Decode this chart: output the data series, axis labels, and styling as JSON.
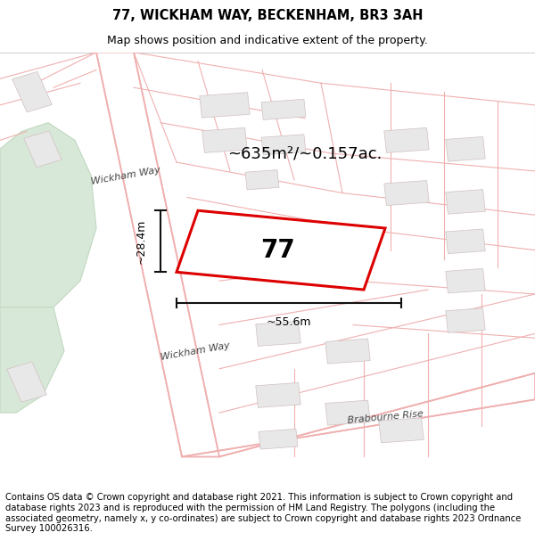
{
  "title": "77, WICKHAM WAY, BECKENHAM, BR3 3AH",
  "subtitle": "Map shows position and indicative extent of the property.",
  "footer": "Contains OS data © Crown copyright and database right 2021. This information is subject to Crown copyright and database rights 2023 and is reproduced with the permission of HM Land Registry. The polygons (including the associated geometry, namely x, y co-ordinates) are subject to Crown copyright and database rights 2023 Ordnance Survey 100026316.",
  "area_label": "~635m²/~0.157ac.",
  "width_label": "~55.6m",
  "height_label": "~28.4m",
  "property_number": "77",
  "bg_color": "#ffffff",
  "map_bg": "#ffffff",
  "road_line_color": "#f0b0b0",
  "building_color": "#e8e8e8",
  "building_edge": "#d0c0c0",
  "green_color": "#d8e8d8",
  "green_edge": "#c0d8c0",
  "property_outline_color": "#dd0000",
  "property_fill": "#ffffff",
  "dim_color": "#111111",
  "label_color": "#444444",
  "title_fontsize": 10.5,
  "subtitle_fontsize": 9,
  "footer_fontsize": 7.2,
  "area_fontsize": 13,
  "dim_fontsize": 9,
  "number_fontsize": 20,
  "road_label_fontsize": 8
}
